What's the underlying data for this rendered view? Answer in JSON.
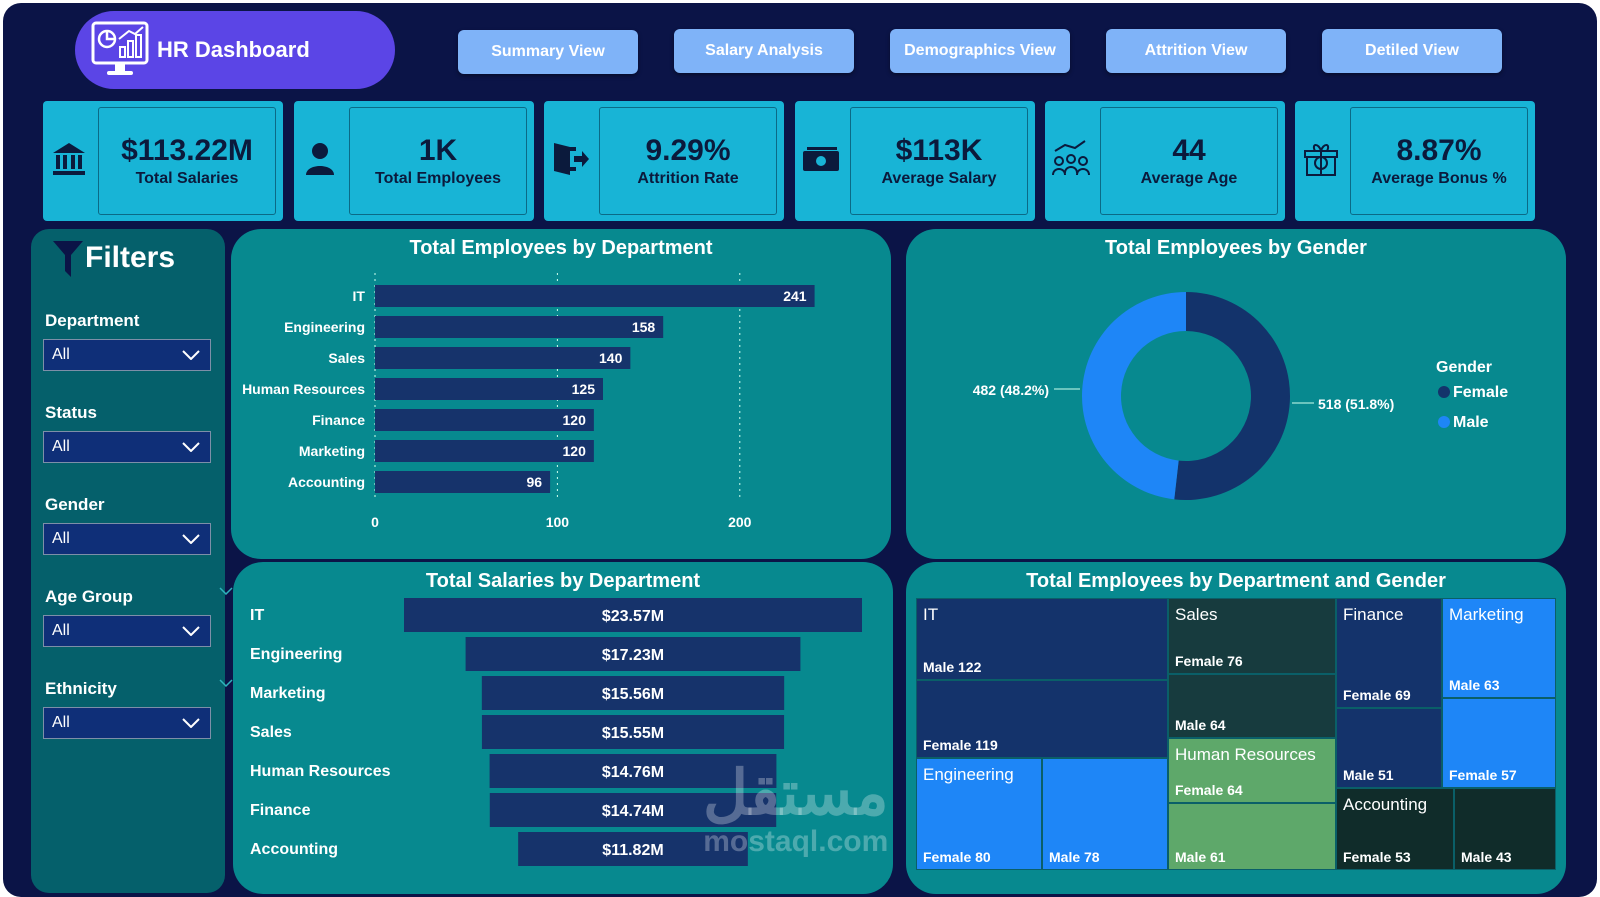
{
  "header": {
    "title": "HR Dashboard",
    "logo_icon": "dashboard-monitor-icon"
  },
  "nav": [
    {
      "label": "Summary View"
    },
    {
      "label": "Salary Analysis"
    },
    {
      "label": "Demographics View"
    },
    {
      "label": "Attrition View"
    },
    {
      "label": "Detiled View"
    }
  ],
  "kpis": [
    {
      "value": "$113.22M",
      "label": "Total Salaries",
      "icon": "bank-icon"
    },
    {
      "value": "1K",
      "label": "Total Employees",
      "icon": "person-icon"
    },
    {
      "value": "9.29%",
      "label": "Attrition Rate",
      "icon": "exit-door-icon"
    },
    {
      "value": "$113K",
      "label": "Average Salary",
      "icon": "cash-icon"
    },
    {
      "value": "44",
      "label": "Average Age",
      "icon": "people-group-icon"
    },
    {
      "value": "8.87%",
      "label": "Average Bonus %",
      "icon": "gift-percent-icon"
    }
  ],
  "filters": {
    "title": "Filters",
    "items": [
      {
        "label": "Department",
        "value": "All"
      },
      {
        "label": "Status",
        "value": "All"
      },
      {
        "label": "Gender",
        "value": "All"
      },
      {
        "label": "Age Group",
        "value": "All"
      },
      {
        "label": "Ethnicity",
        "value": "All"
      }
    ]
  },
  "chart_data": [
    {
      "type": "bar",
      "orientation": "horizontal",
      "title": "Total Employees by Department",
      "categories": [
        "IT",
        "Engineering",
        "Sales",
        "Human Resources",
        "Finance",
        "Marketing",
        "Accounting"
      ],
      "values": [
        241,
        158,
        140,
        125,
        120,
        120,
        96
      ],
      "data_labels": [
        "241",
        "158",
        "140",
        "125",
        "120",
        "120",
        "96"
      ],
      "xticks": [
        0,
        100,
        200
      ],
      "xlim": [
        0,
        250
      ],
      "grid": true,
      "color": "#16336b"
    },
    {
      "type": "pie",
      "style": "donut",
      "title": "Total Employees by Gender",
      "legend_title": "Gender",
      "legend_position": "right",
      "categories": [
        "Female",
        "Male"
      ],
      "values": [
        518,
        482
      ],
      "data_labels": [
        "518 (51.8%)",
        "482 (48.2%)"
      ],
      "colors": [
        "#13336b",
        "#1e86f7"
      ]
    },
    {
      "type": "bar",
      "orientation": "horizontal",
      "style": "funnel",
      "title": "Total Salaries by Department",
      "categories": [
        "IT",
        "Engineering",
        "Marketing",
        "Sales",
        "Human Resources",
        "Finance",
        "Accounting"
      ],
      "values": [
        23.57,
        17.23,
        15.56,
        15.55,
        14.76,
        14.74,
        11.82
      ],
      "data_labels": [
        "$23.57M",
        "$17.23M",
        "$15.56M",
        "$15.55M",
        "$14.76M",
        "$14.74M",
        "$11.82M"
      ],
      "unit": "$M",
      "color": "#16336b"
    },
    {
      "type": "treemap",
      "title": "Total Employees by Department and Gender",
      "groups": [
        {
          "name": "IT",
          "color": "#14336b",
          "items": [
            {
              "label": "Male",
              "value": 122,
              "text": "Male 122"
            },
            {
              "label": "Female",
              "value": 119,
              "text": "Female 119"
            }
          ]
        },
        {
          "name": "Sales",
          "color": "#173b3e",
          "items": [
            {
              "label": "Female",
              "value": 76,
              "text": "Female 76"
            },
            {
              "label": "Male",
              "value": 64,
              "text": "Male 64"
            }
          ]
        },
        {
          "name": "Finance",
          "color": "#14336b",
          "items": [
            {
              "label": "Female",
              "value": 69,
              "text": "Female 69"
            },
            {
              "label": "Male",
              "value": 51,
              "text": "Male 51"
            }
          ]
        },
        {
          "name": "Marketing",
          "color": "#1e86f7",
          "items": [
            {
              "label": "Male",
              "value": 63,
              "text": "Male 63"
            },
            {
              "label": "Female",
              "value": 57,
              "text": "Female 57"
            }
          ]
        },
        {
          "name": "Engineering",
          "color": "#1e86f7",
          "items": [
            {
              "label": "Female",
              "value": 80,
              "text": "Female 80"
            },
            {
              "label": "Male",
              "value": 78,
              "text": "Male 78"
            }
          ]
        },
        {
          "name": "Human Resources",
          "color": "#5ea86a",
          "items": [
            {
              "label": "Female",
              "value": 64,
              "text": "Female 64"
            },
            {
              "label": "Male",
              "value": 61,
              "text": "Male 61"
            }
          ]
        },
        {
          "name": "Accounting",
          "color": "#102c2a",
          "items": [
            {
              "label": "Female",
              "value": 53,
              "text": "Female 53"
            },
            {
              "label": "Male",
              "value": 43,
              "text": "Male 43"
            }
          ]
        }
      ]
    }
  ],
  "watermark": {
    "arabic": "مستقل",
    "latin": "mostaql.com"
  }
}
